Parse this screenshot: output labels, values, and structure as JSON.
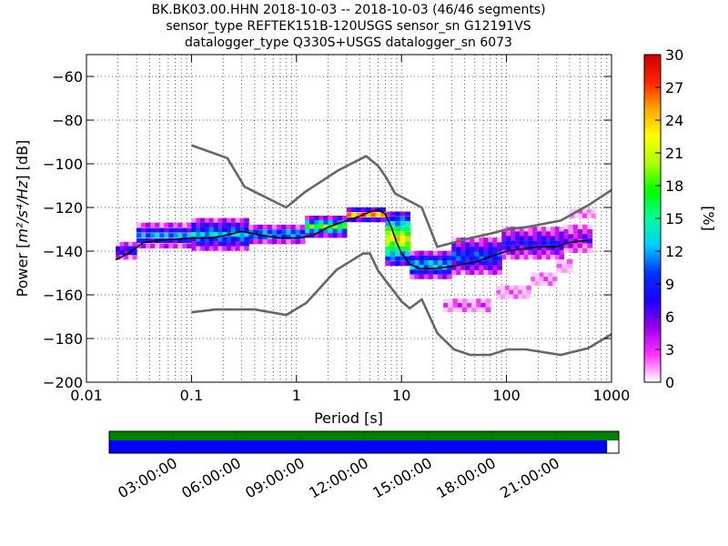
{
  "title_lines": [
    "BK.BK03.00.HHN   2018-10-03 -- 2018-10-03  (46/46 segments)",
    "sensor_type REFTEK151B-120USGS sensor_sn G12191VS",
    "datalogger_type Q330S+USGS datalogger_sn 6073"
  ],
  "chart_data": {
    "type": "heatmap",
    "xlabel": "Period [s]",
    "ylabel_text": "Power [",
    "ylabel_units": "m²/s⁴/Hz",
    "ylabel_end": "] [dB]",
    "xscale": "log",
    "xlim": [
      0.01,
      1000
    ],
    "ylim": [
      -200,
      -50
    ],
    "x_ticks": [
      {
        "value": 0.01,
        "label": "0.01"
      },
      {
        "value": 0.1,
        "label": "0.1"
      },
      {
        "value": 1,
        "label": "1"
      },
      {
        "value": 10,
        "label": "10"
      },
      {
        "value": 100,
        "label": "100"
      },
      {
        "value": 1000,
        "label": "1000"
      }
    ],
    "y_ticks": [
      {
        "value": -60,
        "label": "−60"
      },
      {
        "value": -80,
        "label": "−80"
      },
      {
        "value": -100,
        "label": "−100"
      },
      {
        "value": -120,
        "label": "−120"
      },
      {
        "value": -140,
        "label": "−140"
      },
      {
        "value": -160,
        "label": "−160"
      },
      {
        "value": -180,
        "label": "−180"
      },
      {
        "value": -200,
        "label": "−200"
      }
    ],
    "grid": true,
    "noise_model_high": [
      [
        0.1,
        -91.5
      ],
      [
        0.22,
        -97.4
      ],
      [
        0.32,
        -110.5
      ],
      [
        0.8,
        -120
      ],
      [
        1.2,
        -113
      ],
      [
        2.5,
        -103
      ],
      [
        4,
        -98
      ],
      [
        4.6,
        -96.5
      ],
      [
        6,
        -101
      ],
      [
        7.1,
        -106
      ],
      [
        8.7,
        -113.6
      ],
      [
        15.6,
        -120
      ],
      [
        21.9,
        -138
      ],
      [
        31.6,
        -136
      ],
      [
        45,
        -134
      ],
      [
        70,
        -132
      ],
      [
        101,
        -130
      ],
      [
        154,
        -129
      ],
      [
        328,
        -126
      ],
      [
        600,
        -119
      ],
      [
        1000,
        -112
      ]
    ],
    "noise_model_low": [
      [
        0.1,
        -168
      ],
      [
        0.17,
        -166.7
      ],
      [
        0.4,
        -166.7
      ],
      [
        0.8,
        -169.2
      ],
      [
        1.24,
        -163.7
      ],
      [
        2.4,
        -148.6
      ],
      [
        4.3,
        -141.1
      ],
      [
        5.0,
        -141.1
      ],
      [
        6.0,
        -149
      ],
      [
        10,
        -163
      ],
      [
        12,
        -166.2
      ],
      [
        15.6,
        -162.1
      ],
      [
        21.9,
        -177.5
      ],
      [
        31.6,
        -185
      ],
      [
        45,
        -187.5
      ],
      [
        70,
        -187.5
      ],
      [
        101,
        -185
      ],
      [
        154,
        -185
      ],
      [
        328,
        -187.5
      ],
      [
        600,
        -184.4
      ],
      [
        1000,
        -178
      ]
    ],
    "mode_line": [
      [
        0.019,
        -144
      ],
      [
        0.025,
        -141
      ],
      [
        0.035,
        -136
      ],
      [
        0.05,
        -135
      ],
      [
        0.1,
        -134
      ],
      [
        0.15,
        -134
      ],
      [
        0.2,
        -133
      ],
      [
        0.3,
        -131
      ],
      [
        0.5,
        -133
      ],
      [
        0.7,
        -134
      ],
      [
        1,
        -134
      ],
      [
        1.4,
        -133
      ],
      [
        2,
        -129
      ],
      [
        3,
        -126
      ],
      [
        4,
        -124
      ],
      [
        5,
        -122
      ],
      [
        6,
        -121
      ],
      [
        7,
        -123
      ],
      [
        8,
        -129
      ],
      [
        9,
        -136
      ],
      [
        10,
        -141
      ],
      [
        12,
        -146
      ],
      [
        15,
        -148
      ],
      [
        20,
        -148
      ],
      [
        30,
        -147
      ],
      [
        50,
        -145
      ],
      [
        100,
        -140
      ],
      [
        200,
        -138
      ],
      [
        300,
        -138
      ],
      [
        400,
        -136
      ],
      [
        600,
        -135
      ]
    ],
    "psd_bands": [
      {
        "p0": 0.019,
        "p1": 0.03,
        "y_hi": -136,
        "y_lo": -144,
        "pct": 8
      },
      {
        "p0": 0.03,
        "p1": 0.1,
        "y_hi": -127,
        "y_lo": -139,
        "pct": 10
      },
      {
        "p0": 0.1,
        "p1": 0.35,
        "y_hi": -125,
        "y_lo": -140,
        "pct": 11
      },
      {
        "p0": 0.35,
        "p1": 1.2,
        "y_hi": -128,
        "y_lo": -137,
        "pct": 12
      },
      {
        "p0": 1.2,
        "p1": 3,
        "y_hi": -124,
        "y_lo": -134,
        "pct": 16
      },
      {
        "p0": 3,
        "p1": 7,
        "y_hi": -120,
        "y_lo": -127,
        "pct": 22
      },
      {
        "p0": 7,
        "p1": 12,
        "y_hi": -122,
        "y_lo": -147,
        "pct": 20
      },
      {
        "p0": 12,
        "p1": 30,
        "y_hi": -140,
        "y_lo": -153,
        "pct": 12
      },
      {
        "p0": 30,
        "p1": 90,
        "y_hi": -134,
        "y_lo": -151,
        "pct": 9
      },
      {
        "p0": 90,
        "p1": 350,
        "y_hi": -129,
        "y_lo": -144,
        "pct": 7
      },
      {
        "p0": 350,
        "p1": 650,
        "y_hi": -128,
        "y_lo": -141,
        "pct": 5
      },
      {
        "p0": 25,
        "p1": 70,
        "y_hi": -162,
        "y_lo": -168,
        "pct": 2
      },
      {
        "p0": 80,
        "p1": 170,
        "y_hi": -156,
        "y_lo": -162,
        "pct": 1
      },
      {
        "p0": 170,
        "p1": 300,
        "y_hi": -150,
        "y_lo": -156,
        "pct": 1
      },
      {
        "p0": 300,
        "p1": 420,
        "y_hi": -144,
        "y_lo": -150,
        "pct": 1
      },
      {
        "p0": 400,
        "p1": 700,
        "y_hi": -121,
        "y_lo": -125,
        "pct": 1
      }
    ],
    "colorbar": {
      "label": "[%]",
      "min": 0,
      "max": 30,
      "ticks": [
        {
          "value": 0,
          "label": "0"
        },
        {
          "value": 3,
          "label": "3"
        },
        {
          "value": 6,
          "label": "6"
        },
        {
          "value": 9,
          "label": "9"
        },
        {
          "value": 12,
          "label": "12"
        },
        {
          "value": 15,
          "label": "15"
        },
        {
          "value": 18,
          "label": "18"
        },
        {
          "value": 21,
          "label": "21"
        },
        {
          "value": 24,
          "label": "24"
        },
        {
          "value": 27,
          "label": "27"
        },
        {
          "value": 30,
          "label": "30"
        }
      ],
      "stops": [
        "#ffffff",
        "#ff33ff",
        "#9900ee",
        "#1a00ff",
        "#0033ff",
        "#00ccff",
        "#00ff99",
        "#00ff00",
        "#aaff00",
        "#ffff00",
        "#ffaa00",
        "#ff2200",
        "#cc0000"
      ]
    },
    "coverage": {
      "top_color": "#008000",
      "bottom_color": "#0000ff",
      "coverage_fraction": 0.977,
      "time_ticks": [
        "03:00:00",
        "06:00:00",
        "09:00:00",
        "12:00:00",
        "15:00:00",
        "18:00:00",
        "21:00:00"
      ]
    }
  }
}
